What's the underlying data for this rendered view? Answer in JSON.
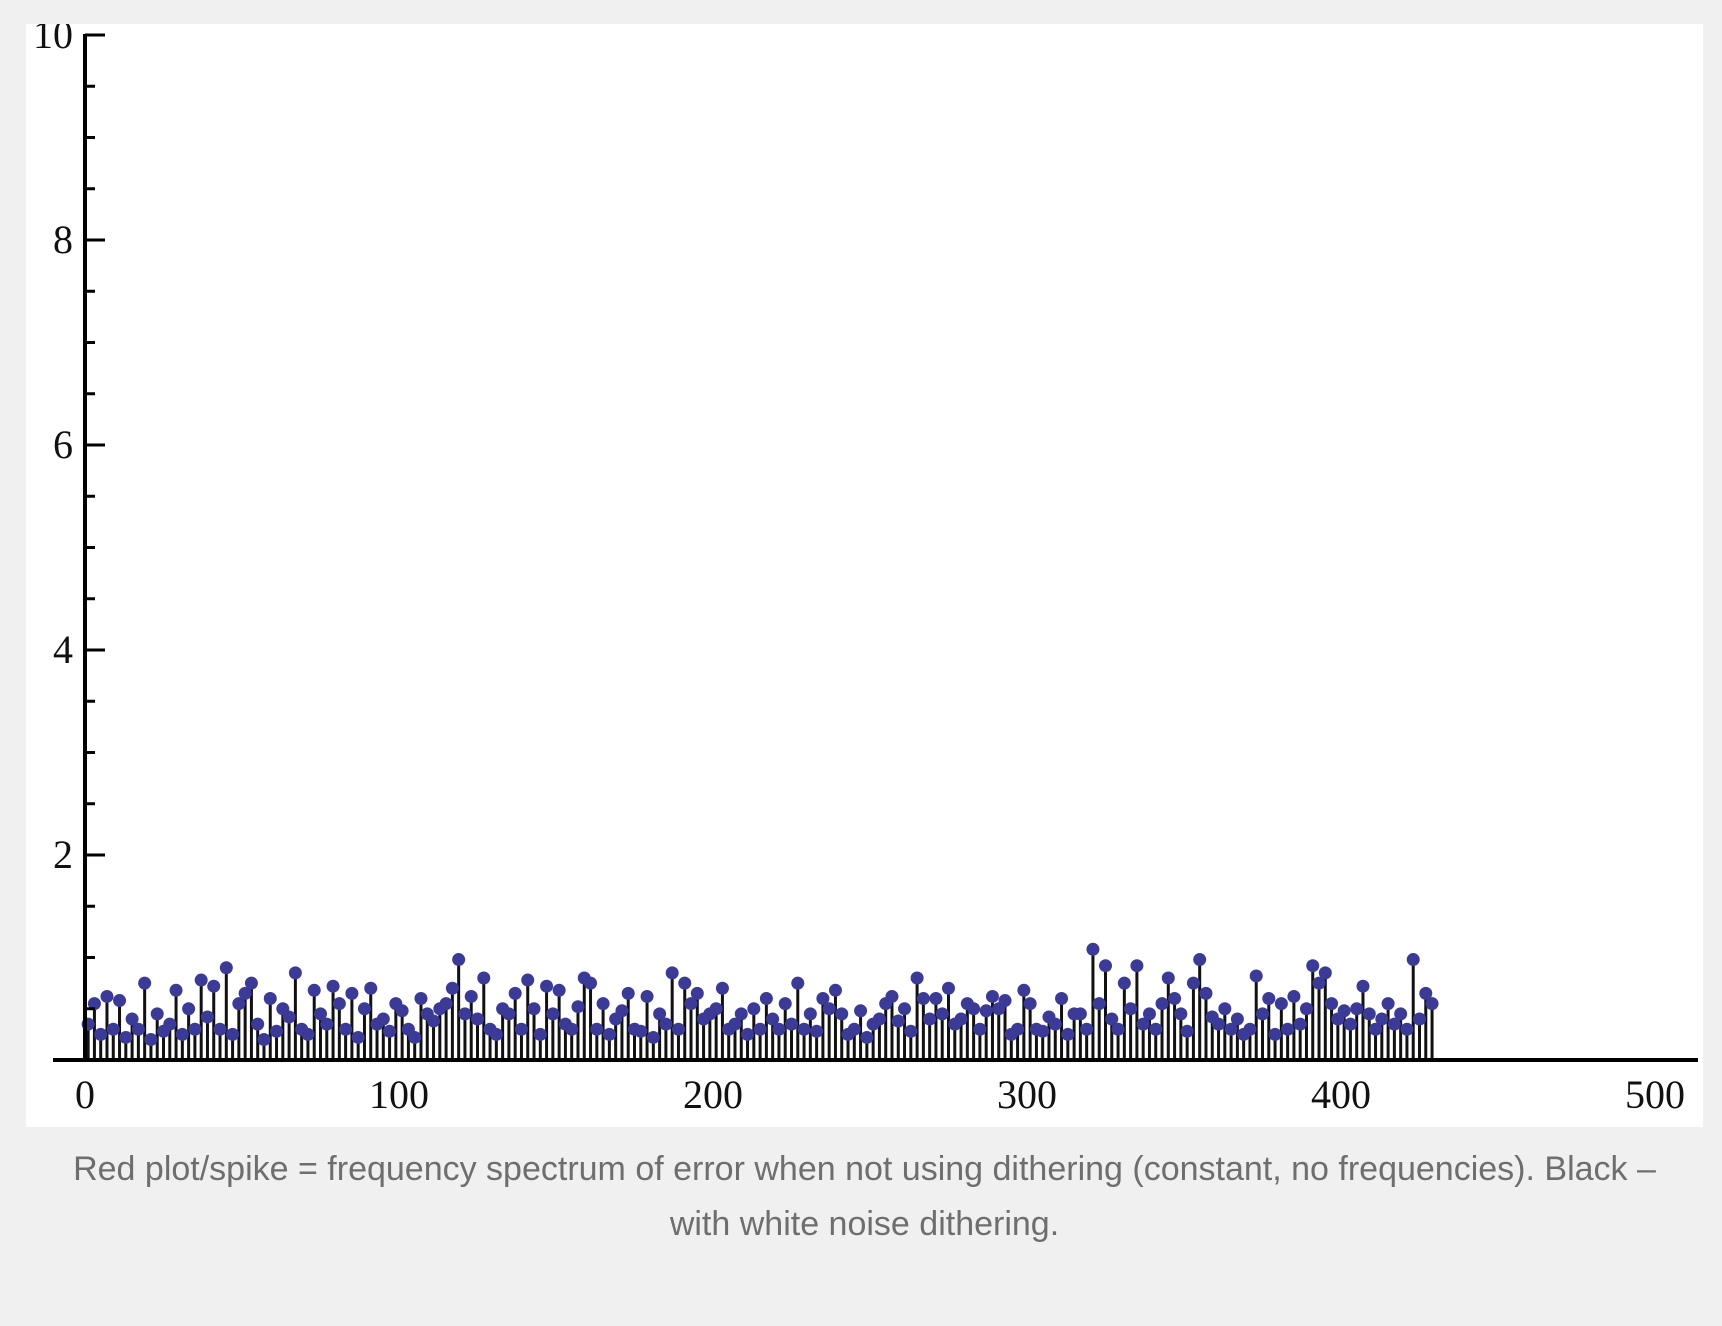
{
  "chart_data": {
    "type": "stem",
    "title": "",
    "xlabel": "",
    "ylabel": "",
    "xlim": [
      0,
      512
    ],
    "ylim": [
      0,
      10
    ],
    "x_ticks": [
      0,
      100,
      200,
      300,
      400,
      500
    ],
    "x_tick_labels": [
      "0",
      "100",
      "200",
      "300",
      "400",
      "500"
    ],
    "y_ticks": [
      2,
      4,
      6,
      8,
      10
    ],
    "y_tick_labels": [
      "2",
      "4",
      "6",
      "8",
      "10"
    ],
    "y_minor_step": 0.5,
    "grid": false,
    "legend": "none",
    "colors": {
      "marker": "#3b3a96",
      "stem": "#111111",
      "axis": "#000000"
    },
    "series": [
      {
        "x_start": 1,
        "x_step": 2,
        "values": [
          0.35,
          0.55,
          0.25,
          0.62,
          0.3,
          0.58,
          0.22,
          0.4,
          0.3,
          0.75,
          0.2,
          0.45,
          0.28,
          0.35,
          0.68,
          0.25,
          0.5,
          0.3,
          0.78,
          0.42,
          0.72,
          0.3,
          0.9,
          0.25,
          0.55,
          0.65,
          0.75,
          0.35,
          0.2,
          0.6,
          0.28,
          0.5,
          0.42,
          0.85,
          0.3,
          0.25,
          0.68,
          0.45,
          0.35,
          0.72,
          0.55,
          0.3,
          0.65,
          0.22,
          0.5,
          0.7,
          0.35,
          0.4,
          0.28,
          0.55,
          0.48,
          0.3,
          0.22,
          0.6,
          0.45,
          0.38,
          0.5,
          0.55,
          0.7,
          0.98,
          0.45,
          0.62,
          0.4,
          0.8,
          0.3,
          0.25,
          0.5,
          0.45,
          0.65,
          0.3,
          0.78,
          0.5,
          0.25,
          0.72,
          0.45,
          0.68,
          0.35,
          0.3,
          0.52,
          0.8,
          0.75,
          0.3,
          0.55,
          0.25,
          0.4,
          0.48,
          0.65,
          0.3,
          0.28,
          0.62,
          0.22,
          0.45,
          0.35,
          0.85,
          0.3,
          0.75,
          0.55,
          0.65,
          0.4,
          0.45,
          0.5,
          0.7,
          0.3,
          0.35,
          0.45,
          0.25,
          0.5,
          0.3,
          0.6,
          0.4,
          0.3,
          0.55,
          0.35,
          0.75,
          0.3,
          0.45,
          0.28,
          0.6,
          0.5,
          0.68,
          0.45,
          0.25,
          0.3,
          0.48,
          0.22,
          0.35,
          0.4,
          0.55,
          0.62,
          0.38,
          0.5,
          0.28,
          0.8,
          0.6,
          0.4,
          0.6,
          0.45,
          0.7,
          0.35,
          0.4,
          0.55,
          0.5,
          0.3,
          0.48,
          0.62,
          0.5,
          0.58,
          0.25,
          0.3,
          0.68,
          0.55,
          0.3,
          0.28,
          0.42,
          0.35,
          0.6,
          0.25,
          0.45,
          0.45,
          0.3,
          1.08,
          0.55,
          0.92,
          0.4,
          0.3,
          0.75,
          0.5,
          0.92,
          0.35,
          0.45,
          0.3,
          0.55,
          0.8,
          0.6,
          0.45,
          0.28,
          0.75,
          0.98,
          0.65,
          0.42,
          0.35,
          0.5,
          0.3,
          0.4,
          0.25,
          0.3,
          0.82,
          0.45,
          0.6,
          0.25,
          0.55,
          0.3,
          0.62,
          0.35,
          0.5,
          0.92,
          0.75,
          0.85,
          0.55,
          0.4,
          0.48,
          0.35,
          0.5,
          0.72,
          0.45,
          0.3,
          0.4,
          0.55,
          0.35,
          0.45,
          0.3,
          0.98,
          0.4,
          0.65,
          0.55
        ]
      }
    ]
  },
  "caption": {
    "line1": "Red plot/spike = frequency spectrum of error when not using dithering (constant, no frequencies). Black –",
    "line2": "with white noise dithering."
  }
}
